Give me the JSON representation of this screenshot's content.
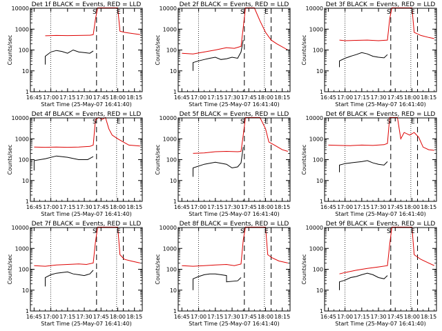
{
  "figure": {
    "xlabel": "Start Time (25-May-07 16:41:40)",
    "ylabel": "Counts/sec",
    "x_ticks": [
      "16:45",
      "17:00",
      "17:15",
      "17:30",
      "17:45",
      "18:00",
      "18:15"
    ],
    "y_ticks": [
      "1",
      "10",
      "100",
      "1000",
      "10000"
    ],
    "colors": {
      "events": "#000000",
      "lld": "#dd0000",
      "axes": "#000000",
      "background": "#ffffff"
    }
  },
  "chart_data": [
    {
      "type": "line",
      "title": "Det 1f BLACK = Events, RED = LLD",
      "log_y": true,
      "ylim": [
        1,
        10000
      ],
      "xlim": [
        "16:41:40",
        "18:22:00"
      ],
      "markers": {
        "S": "17:41",
        "E": "17:59"
      },
      "dotted_lines": [
        "17:00",
        "17:59"
      ],
      "dashed_lines": [
        "17:41",
        "18:05"
      ],
      "series": [
        {
          "name": "Events",
          "color": "#000000",
          "x": [
            "16:55",
            "16:55",
            "17:00",
            "17:05",
            "17:10",
            "17:15",
            "17:20",
            "17:25",
            "17:30",
            "17:35",
            "17:38"
          ],
          "y": [
            20,
            50,
            80,
            95,
            85,
            70,
            100,
            80,
            75,
            70,
            90
          ]
        },
        {
          "name": "LLD",
          "color": "#dd0000",
          "x": [
            "16:55",
            "17:05",
            "17:15",
            "17:25",
            "17:35",
            "17:38",
            "17:40",
            "17:42",
            "17:48",
            "17:55",
            "18:00",
            "18:02",
            "18:06",
            "18:10",
            "18:20"
          ],
          "y": [
            480,
            500,
            490,
            500,
            510,
            540,
            3000,
            11000,
            11000,
            11000,
            11000,
            800,
            700,
            650,
            550
          ]
        }
      ]
    },
    {
      "type": "line",
      "title": "Det 2f BLACK = Events, RED = LLD",
      "log_y": true,
      "ylim": [
        1,
        10000
      ],
      "xlim": [
        "16:41:40",
        "18:22:00"
      ],
      "markers": {
        "S": "17:41",
        "E": "17:59"
      },
      "dotted_lines": [
        "17:00",
        "17:59"
      ],
      "dashed_lines": [
        "17:41",
        "18:05"
      ],
      "series": [
        {
          "name": "Events",
          "color": "#000000",
          "x": [
            "16:55",
            "16:55",
            "17:00",
            "17:05",
            "17:10",
            "17:15",
            "17:20",
            "17:25",
            "17:30",
            "17:35",
            "17:38",
            "17:40"
          ],
          "y": [
            10,
            25,
            30,
            35,
            40,
            45,
            35,
            38,
            45,
            40,
            80,
            300
          ]
        },
        {
          "name": "LLD",
          "color": "#dd0000",
          "x": [
            "16:45",
            "16:55",
            "17:05",
            "17:15",
            "17:25",
            "17:32",
            "17:38",
            "17:40",
            "17:42",
            "17:50",
            "17:55",
            "18:00",
            "18:05",
            "18:10",
            "18:20"
          ],
          "y": [
            70,
            65,
            80,
            100,
            130,
            120,
            150,
            1200,
            11000,
            11000,
            2500,
            700,
            300,
            200,
            100
          ]
        }
      ]
    },
    {
      "type": "line",
      "title": "Det 3f BLACK = Events, RED = LLD",
      "log_y": true,
      "ylim": [
        1,
        10000
      ],
      "xlim": [
        "16:41:40",
        "18:22:00"
      ],
      "markers": {
        "S": "17:41",
        "E": "17:59"
      },
      "dotted_lines": [
        "17:00",
        "17:59"
      ],
      "dashed_lines": [
        "17:41",
        "18:05"
      ],
      "series": [
        {
          "name": "Events",
          "color": "#000000",
          "x": [
            "16:55",
            "16:55",
            "17:00",
            "17:05",
            "17:10",
            "17:15",
            "17:20",
            "17:25",
            "17:30",
            "17:35",
            "17:38"
          ],
          "y": [
            15,
            30,
            40,
            50,
            60,
            75,
            65,
            50,
            45,
            42,
            60
          ]
        },
        {
          "name": "LLD",
          "color": "#dd0000",
          "x": [
            "16:55",
            "17:00",
            "17:10",
            "17:20",
            "17:30",
            "17:38",
            "17:40",
            "17:42",
            "17:55",
            "18:00",
            "18:02",
            "18:08",
            "18:15",
            "18:20"
          ],
          "y": [
            300,
            280,
            290,
            300,
            280,
            300,
            3000,
            11000,
            11000,
            11000,
            700,
            500,
            400,
            350
          ]
        }
      ]
    },
    {
      "type": "line",
      "title": "Det 4f BLACK = Events, RED = LLD",
      "log_y": true,
      "ylim": [
        1,
        10000
      ],
      "xlim": [
        "16:41:40",
        "18:22:00"
      ],
      "markers": {
        "S": "17:41",
        "E": "17:59"
      },
      "dotted_lines": [
        "17:00",
        "17:59"
      ],
      "dashed_lines": [
        "17:41",
        "18:05"
      ],
      "series": [
        {
          "name": "Events",
          "color": "#000000",
          "x": [
            "16:45",
            "16:45",
            "16:55",
            "17:05",
            "17:15",
            "17:25",
            "17:33",
            "17:38"
          ],
          "y": [
            30,
            90,
            110,
            150,
            130,
            100,
            100,
            140
          ]
        },
        {
          "name": "LLD",
          "color": "#dd0000",
          "x": [
            "16:45",
            "16:55",
            "17:05",
            "17:15",
            "17:25",
            "17:35",
            "17:38",
            "17:40",
            "17:43",
            "17:46",
            "17:49",
            "17:52",
            "17:55",
            "18:00",
            "18:05",
            "18:10",
            "18:20"
          ],
          "y": [
            400,
            390,
            400,
            390,
            400,
            430,
            500,
            8000,
            11000,
            8500,
            11000,
            3000,
            1500,
            1000,
            700,
            500,
            450
          ]
        }
      ]
    },
    {
      "type": "line",
      "title": "Det 5f BLACK = Events, RED = LLD",
      "log_y": true,
      "ylim": [
        1,
        10000
      ],
      "xlim": [
        "16:41:40",
        "18:22:00"
      ],
      "markers": {
        "S": "17:41",
        "E": "17:59"
      },
      "dotted_lines": [
        "17:00",
        "17:59"
      ],
      "dashed_lines": [
        "17:41",
        "18:05"
      ],
      "series": [
        {
          "name": "Events",
          "color": "#000000",
          "x": [
            "16:55",
            "16:55",
            "17:05",
            "17:15",
            "17:25",
            "17:30",
            "17:35",
            "17:38",
            "17:40"
          ],
          "y": [
            15,
            40,
            60,
            75,
            60,
            40,
            45,
            70,
            400
          ]
        },
        {
          "name": "LLD",
          "color": "#dd0000",
          "x": [
            "16:55",
            "17:05",
            "17:15",
            "17:25",
            "17:35",
            "17:38",
            "17:40",
            "17:42",
            "17:55",
            "18:00",
            "18:03",
            "18:08",
            "18:15",
            "18:20"
          ],
          "y": [
            200,
            210,
            240,
            250,
            240,
            250,
            1500,
            11000,
            11000,
            3000,
            700,
            500,
            300,
            250
          ]
        }
      ]
    },
    {
      "type": "line",
      "title": "Det 6f BLACK = Events, RED = LLD",
      "log_y": true,
      "ylim": [
        1,
        10000
      ],
      "xlim": [
        "16:41:40",
        "18:22:00"
      ],
      "markers": {
        "S": "17:41",
        "E": "17:59"
      },
      "dotted_lines": [
        "17:00",
        "17:59"
      ],
      "dashed_lines": [
        "17:41",
        "18:05"
      ],
      "series": [
        {
          "name": "Events",
          "color": "#000000",
          "x": [
            "16:55",
            "16:55",
            "17:00",
            "17:05",
            "17:10",
            "17:15",
            "17:20",
            "17:25",
            "17:30",
            "17:35",
            "17:38"
          ],
          "y": [
            25,
            55,
            65,
            70,
            75,
            80,
            90,
            70,
            60,
            55,
            80
          ]
        },
        {
          "name": "LLD",
          "color": "#dd0000",
          "x": [
            "16:45",
            "16:55",
            "17:05",
            "17:15",
            "17:25",
            "17:35",
            "17:38",
            "17:40",
            "17:42",
            "17:47",
            "17:50",
            "17:53",
            "17:58",
            "18:02",
            "18:06",
            "18:10",
            "18:15",
            "18:20"
          ],
          "y": [
            500,
            480,
            470,
            500,
            480,
            520,
            600,
            11000,
            11000,
            11000,
            1000,
            2000,
            1500,
            2000,
            1200,
            400,
            300,
            280
          ]
        }
      ]
    },
    {
      "type": "line",
      "title": "Det 7f BLACK = Events, RED = LLD",
      "log_y": true,
      "ylim": [
        1,
        10000
      ],
      "xlim": [
        "16:41:40",
        "18:22:00"
      ],
      "markers": {
        "S": "17:41",
        "E": "17:59"
      },
      "dotted_lines": [
        "17:00",
        "17:59"
      ],
      "dashed_lines": [
        "17:41",
        "18:05"
      ],
      "series": [
        {
          "name": "Events",
          "color": "#000000",
          "x": [
            "16:55",
            "16:55",
            "17:00",
            "17:05",
            "17:10",
            "17:15",
            "17:20",
            "17:25",
            "17:30",
            "17:35",
            "17:38"
          ],
          "y": [
            15,
            40,
            55,
            65,
            70,
            75,
            60,
            55,
            50,
            60,
            90
          ]
        },
        {
          "name": "LLD",
          "color": "#dd0000",
          "x": [
            "16:45",
            "16:55",
            "17:05",
            "17:15",
            "17:25",
            "17:32",
            "17:38",
            "17:40",
            "17:42",
            "17:55",
            "18:00",
            "18:02",
            "18:06",
            "18:12",
            "18:20"
          ],
          "y": [
            150,
            140,
            160,
            170,
            180,
            170,
            200,
            2000,
            11000,
            11000,
            11000,
            500,
            300,
            250,
            200
          ]
        }
      ]
    },
    {
      "type": "line",
      "title": "Det 8f BLACK = Events, RED = LLD",
      "log_y": true,
      "ylim": [
        1,
        10000
      ],
      "xlim": [
        "16:41:40",
        "18:22:00"
      ],
      "markers": {
        "S": "17:41",
        "E": "17:59"
      },
      "dotted_lines": [
        "17:00",
        "17:59"
      ],
      "dashed_lines": [
        "17:41",
        "18:05"
      ],
      "series": [
        {
          "name": "Events",
          "color": "#000000",
          "x": [
            "16:55",
            "16:55",
            "17:00",
            "17:05",
            "17:10",
            "17:15",
            "17:20",
            "17:25",
            "17:25",
            "17:35",
            "17:38"
          ],
          "y": [
            10,
            35,
            45,
            55,
            60,
            60,
            55,
            50,
            25,
            28,
            40
          ]
        },
        {
          "name": "LLD",
          "color": "#dd0000",
          "x": [
            "16:45",
            "16:55",
            "17:05",
            "17:15",
            "17:25",
            "17:32",
            "17:38",
            "17:40",
            "17:42",
            "17:55",
            "18:00",
            "18:02",
            "18:06",
            "18:12",
            "18:20"
          ],
          "y": [
            150,
            140,
            150,
            160,
            170,
            150,
            180,
            2500,
            11000,
            11000,
            11000,
            500,
            350,
            250,
            200
          ]
        }
      ]
    },
    {
      "type": "line",
      "title": "Det 9f BLACK = Events, RED = LLD",
      "log_y": true,
      "ylim": [
        1,
        10000
      ],
      "xlim": [
        "16:41:40",
        "18:22:00"
      ],
      "markers": {
        "S": "17:41",
        "E": "17:59"
      },
      "dotted_lines": [
        "17:00",
        "17:59"
      ],
      "dashed_lines": [
        "17:41",
        "18:05"
      ],
      "series": [
        {
          "name": "Events",
          "color": "#000000",
          "x": [
            "16:55",
            "16:55",
            "17:00",
            "17:05",
            "17:10",
            "17:15",
            "17:20",
            "17:25",
            "17:30",
            "17:35",
            "17:38"
          ],
          "y": [
            10,
            25,
            30,
            40,
            45,
            55,
            65,
            55,
            40,
            35,
            50
          ]
        },
        {
          "name": "LLD",
          "color": "#dd0000",
          "x": [
            "16:55",
            "17:00",
            "17:10",
            "17:20",
            "17:30",
            "17:38",
            "17:40",
            "17:42",
            "17:55",
            "18:00",
            "18:02",
            "18:08",
            "18:15",
            "18:20"
          ],
          "y": [
            60,
            70,
            90,
            110,
            130,
            150,
            1500,
            11000,
            11000,
            11000,
            500,
            300,
            200,
            150
          ]
        }
      ]
    }
  ]
}
